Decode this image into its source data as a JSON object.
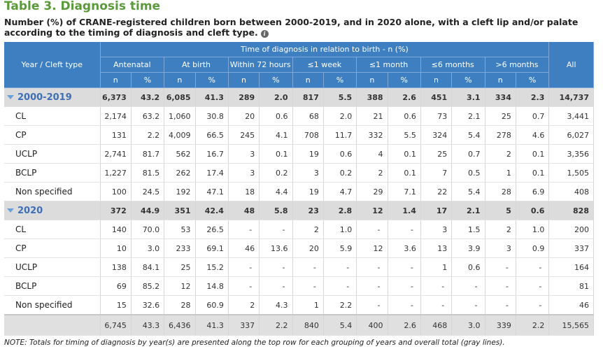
{
  "title": "Table 3. Diagnosis time",
  "subtitle": "Number (%) of CRANE-registered children born between 2000-2019, and in 2020 alone, with a cleft lip and/or palate according to the timing of diagnosis and cleft type.",
  "info_icon": "info-icon",
  "header": {
    "row_label": "Year / Cleft type",
    "group_label": "Time of diagnosis in relation to birth - n (%)",
    "all_label": "All",
    "n_label": "n",
    "pct_label": "%",
    "periods": [
      "Antenatal",
      "At birth",
      "Within 72 hours",
      "≤1 week",
      "≤1 month",
      "≤6 months",
      ">6 months"
    ]
  },
  "groups": [
    {
      "label": "2000-2019",
      "values": [
        "6,373",
        "43.2",
        "6,085",
        "41.3",
        "289",
        "2.0",
        "817",
        "5.5",
        "388",
        "2.6",
        "451",
        "3.1",
        "334",
        "2.3",
        "14,737"
      ],
      "rows": [
        {
          "label": "CL",
          "values": [
            "2,174",
            "63.2",
            "1,060",
            "30.8",
            "20",
            "0.6",
            "68",
            "2.0",
            "21",
            "0.6",
            "73",
            "2.1",
            "25",
            "0.7",
            "3,441"
          ]
        },
        {
          "label": "CP",
          "values": [
            "131",
            "2.2",
            "4,009",
            "66.5",
            "245",
            "4.1",
            "708",
            "11.7",
            "332",
            "5.5",
            "324",
            "5.4",
            "278",
            "4.6",
            "6,027"
          ]
        },
        {
          "label": "UCLP",
          "values": [
            "2,741",
            "81.7",
            "562",
            "16.7",
            "3",
            "0.1",
            "19",
            "0.6",
            "4",
            "0.1",
            "25",
            "0.7",
            "2",
            "0.1",
            "3,356"
          ]
        },
        {
          "label": "BCLP",
          "values": [
            "1,227",
            "81.5",
            "262",
            "17.4",
            "3",
            "0.2",
            "3",
            "0.2",
            "2",
            "0.1",
            "7",
            "0.5",
            "1",
            "0.1",
            "1,505"
          ]
        },
        {
          "label": "Non specified",
          "values": [
            "100",
            "24.5",
            "192",
            "47.1",
            "18",
            "4.4",
            "19",
            "4.7",
            "29",
            "7.1",
            "22",
            "5.4",
            "28",
            "6.9",
            "408"
          ]
        }
      ]
    },
    {
      "label": "2020",
      "values": [
        "372",
        "44.9",
        "351",
        "42.4",
        "48",
        "5.8",
        "23",
        "2.8",
        "12",
        "1.4",
        "17",
        "2.1",
        "5",
        "0.6",
        "828"
      ],
      "rows": [
        {
          "label": "CL",
          "values": [
            "140",
            "70.0",
            "53",
            "26.5",
            "-",
            "-",
            "2",
            "1.0",
            "-",
            "-",
            "3",
            "1.5",
            "2",
            "1.0",
            "200"
          ]
        },
        {
          "label": "CP",
          "values": [
            "10",
            "3.0",
            "233",
            "69.1",
            "46",
            "13.6",
            "20",
            "5.9",
            "12",
            "3.6",
            "13",
            "3.9",
            "3",
            "0.9",
            "337"
          ]
        },
        {
          "label": "UCLP",
          "values": [
            "138",
            "84.1",
            "25",
            "15.2",
            "-",
            "-",
            "-",
            "-",
            "-",
            "-",
            "1",
            "0.6",
            "-",
            "-",
            "164"
          ]
        },
        {
          "label": "BCLP",
          "values": [
            "69",
            "85.2",
            "12",
            "14.8",
            "-",
            "-",
            "-",
            "-",
            "-",
            "-",
            "-",
            "-",
            "-",
            "-",
            "81"
          ]
        },
        {
          "label": "Non specified",
          "values": [
            "15",
            "32.6",
            "28",
            "60.9",
            "2",
            "4.3",
            "1",
            "2.2",
            "-",
            "-",
            "-",
            "-",
            "-",
            "-",
            "46"
          ]
        }
      ]
    }
  ],
  "total": {
    "label": "",
    "values": [
      "6,745",
      "43.3",
      "6,436",
      "41.3",
      "337",
      "2.2",
      "840",
      "5.4",
      "400",
      "2.6",
      "468",
      "3.0",
      "339",
      "2.2",
      "15,565"
    ]
  },
  "note": "NOTE: Totals for timing of diagnosis by year(s) are presented along the top row for each grouping of years and overall total (gray lines).",
  "colors": {
    "title": "#5a9a3a",
    "header_bg": "#3e7fc1",
    "group_label": "#3e6fb5",
    "group_bg": "#dcdcdc"
  }
}
